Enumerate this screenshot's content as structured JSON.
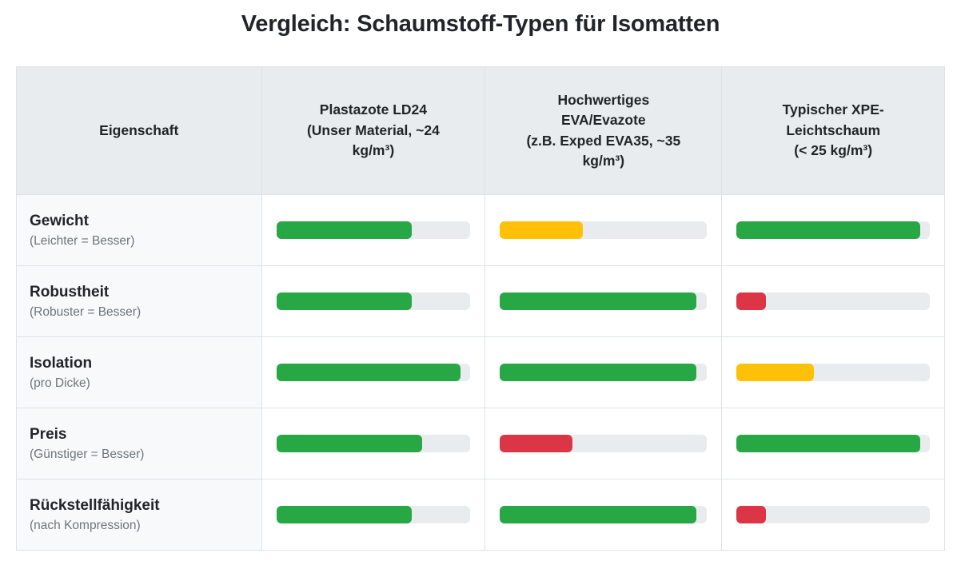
{
  "page": {
    "title": "Vergleich: Schaumstoff-Typen für Isomatten"
  },
  "colors": {
    "good": "#28a745",
    "medium": "#ffc107",
    "bad": "#dc3545",
    "track": "#e9ecef",
    "header_bg": "#e9ecef",
    "label_cell_bg": "#f8f9fa",
    "border": "#dee2e6",
    "title_text": "#212529",
    "subtitle_text": "#6c757d"
  },
  "table": {
    "columns": [
      {
        "label": "Eigenschaft",
        "display": "Eigenschaft"
      },
      {
        "label": "Plastazote LD24 (Unser Material, ~24 kg/m³)",
        "display": "Plastazote LD24\n(Unser Material, ~24\nkg/m³)"
      },
      {
        "label": "Hochwertiges EVA/Evazote (z.B. Exped EVA35, ~35 kg/m³)",
        "display": "Hochwertiges\nEVA/Evazote\n(z.B. Exped EVA35, ~35\nkg/m³)"
      },
      {
        "label": "Typischer XPE-Leichtschaum (< 25 kg/m³)",
        "display": "Typischer XPE-\nLeichtschaum\n(< 25 kg/m³)"
      }
    ],
    "rows": [
      {
        "label": "Gewicht",
        "sublabel": "(Leichter = Besser)",
        "bars": [
          {
            "value": 70,
            "rating": "good"
          },
          {
            "value": 40,
            "rating": "medium"
          },
          {
            "value": 95,
            "rating": "good"
          }
        ]
      },
      {
        "label": "Robustheit",
        "sublabel": "(Robuster = Besser)",
        "bars": [
          {
            "value": 70,
            "rating": "good"
          },
          {
            "value": 95,
            "rating": "good"
          },
          {
            "value": 15,
            "rating": "bad"
          }
        ]
      },
      {
        "label": "Isolation",
        "sublabel": "(pro Dicke)",
        "bars": [
          {
            "value": 95,
            "rating": "good"
          },
          {
            "value": 95,
            "rating": "good"
          },
          {
            "value": 40,
            "rating": "medium"
          }
        ]
      },
      {
        "label": "Preis",
        "sublabel": "(Günstiger = Besser)",
        "bars": [
          {
            "value": 75,
            "rating": "good"
          },
          {
            "value": 35,
            "rating": "bad"
          },
          {
            "value": 95,
            "rating": "good"
          }
        ]
      },
      {
        "label": "Rückstellfähigkeit",
        "sublabel": "(nach Kompression)",
        "bars": [
          {
            "value": 70,
            "rating": "good"
          },
          {
            "value": 95,
            "rating": "good"
          },
          {
            "value": 15,
            "rating": "bad"
          }
        ]
      }
    ]
  },
  "chart_data": {
    "type": "table",
    "title": "Vergleich: Schaumstoff-Typen für Isomatten",
    "description": "Comparison table with horizontal rating bars (0-100) per material and property",
    "categories": [
      "Gewicht (Leichter = Besser)",
      "Robustheit (Robuster = Besser)",
      "Isolation (pro Dicke)",
      "Preis (Günstiger = Besser)",
      "Rückstellfähigkeit (nach Kompression)"
    ],
    "series": [
      {
        "name": "Plastazote LD24 (Unser Material, ~24 kg/m³)",
        "values": [
          70,
          70,
          95,
          75,
          70
        ],
        "ratings": [
          "good",
          "good",
          "good",
          "good",
          "good"
        ]
      },
      {
        "name": "Hochwertiges EVA/Evazote (z.B. Exped EVA35, ~35 kg/m³)",
        "values": [
          40,
          95,
          95,
          35,
          95
        ],
        "ratings": [
          "medium",
          "good",
          "good",
          "bad",
          "good"
        ]
      },
      {
        "name": "Typischer XPE-Leichtschaum (< 25 kg/m³)",
        "values": [
          95,
          15,
          40,
          95,
          15
        ],
        "ratings": [
          "good",
          "bad",
          "medium",
          "good",
          "bad"
        ]
      }
    ],
    "value_range": [
      0,
      100
    ],
    "rating_colors": {
      "good": "#28a745",
      "medium": "#ffc107",
      "bad": "#dc3545"
    },
    "legend_position": "none",
    "grid": false
  }
}
